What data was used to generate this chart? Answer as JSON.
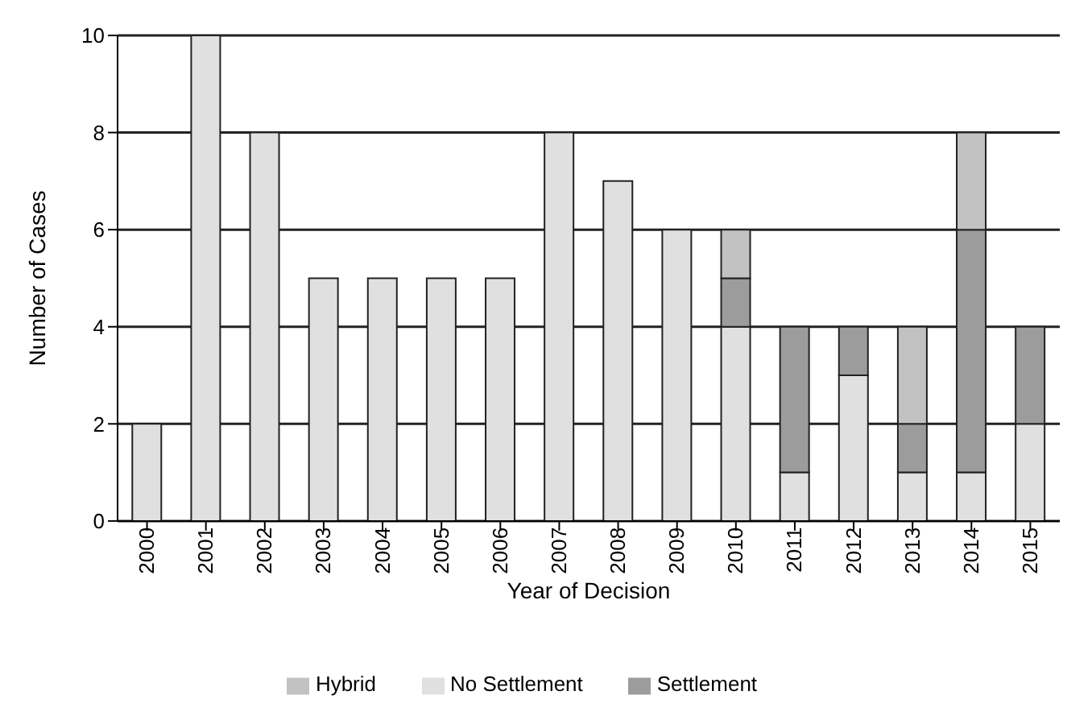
{
  "chart_data": {
    "type": "bar",
    "stacked": true,
    "xlabel": "Year of Decision",
    "ylabel": "Number of Cases",
    "categories": [
      "2000",
      "2001",
      "2002",
      "2003",
      "2004",
      "2005",
      "2006",
      "2007",
      "2008",
      "2009",
      "2010",
      "2011",
      "2012",
      "2013",
      "2014",
      "2015"
    ],
    "series": [
      {
        "name": "No Settlement",
        "color": "#e0e0e0",
        "values": [
          2,
          10,
          8,
          5,
          5,
          5,
          5,
          8,
          7,
          6,
          4,
          1,
          3,
          1,
          1,
          2
        ]
      },
      {
        "name": "Settlement",
        "color": "#9c9c9c",
        "values": [
          0,
          0,
          0,
          0,
          0,
          0,
          0,
          0,
          0,
          0,
          1,
          3,
          1,
          1,
          5,
          2
        ]
      },
      {
        "name": "Hybrid",
        "color": "#c2c2c2",
        "values": [
          0,
          0,
          0,
          0,
          0,
          0,
          0,
          0,
          0,
          0,
          1,
          0,
          0,
          2,
          2,
          0
        ]
      }
    ],
    "ylim": [
      0,
      10
    ],
    "yticks": [
      0,
      2,
      4,
      6,
      8,
      10
    ],
    "grid": "y",
    "legend": "bottom"
  }
}
